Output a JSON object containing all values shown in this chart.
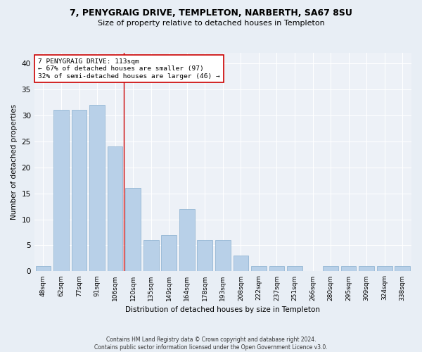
{
  "title": "7, PENYGRAIG DRIVE, TEMPLETON, NARBERTH, SA67 8SU",
  "subtitle": "Size of property relative to detached houses in Templeton",
  "xlabel": "Distribution of detached houses by size in Templeton",
  "ylabel": "Number of detached properties",
  "footer_line1": "Contains HM Land Registry data © Crown copyright and database right 2024.",
  "footer_line2": "Contains public sector information licensed under the Open Government Licence v3.0.",
  "categories": [
    "48sqm",
    "62sqm",
    "77sqm",
    "91sqm",
    "106sqm",
    "120sqm",
    "135sqm",
    "149sqm",
    "164sqm",
    "178sqm",
    "193sqm",
    "208sqm",
    "222sqm",
    "237sqm",
    "251sqm",
    "266sqm",
    "280sqm",
    "295sqm",
    "309sqm",
    "324sqm",
    "338sqm"
  ],
  "values": [
    1,
    31,
    31,
    32,
    24,
    16,
    6,
    7,
    12,
    6,
    6,
    3,
    1,
    1,
    1,
    0,
    1,
    1,
    1,
    1,
    1
  ],
  "bar_color": "#b8d0e8",
  "bar_edge_color": "#88aece",
  "property_label": "7 PENYGRAIG DRIVE: 113sqm",
  "annotation_line1": "← 67% of detached houses are smaller (97)",
  "annotation_line2": "32% of semi-detached houses are larger (46) →",
  "vline_position": 4.5,
  "ylim": [
    0,
    42
  ],
  "yticks": [
    0,
    5,
    10,
    15,
    20,
    25,
    30,
    35,
    40
  ],
  "bg_color": "#e8eef5",
  "plot_bg_color": "#edf1f7",
  "vline_color": "#cc0000",
  "annotation_box_color": "#ffffff",
  "annotation_box_edge_color": "#cc0000"
}
